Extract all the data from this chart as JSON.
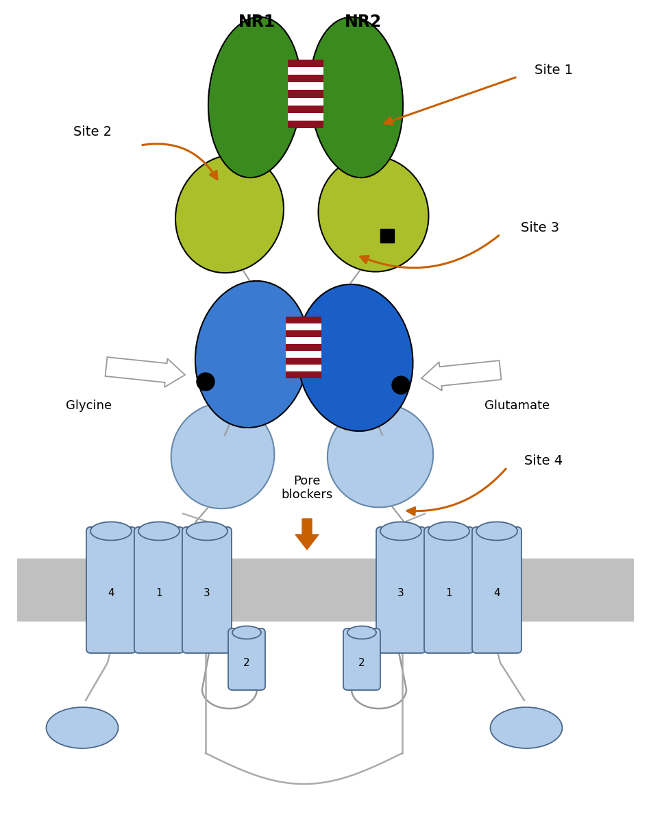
{
  "bg_color": "#ffffff",
  "dark_green": "#3a8a20",
  "light_green": "#aabf2a",
  "dark_blue": "#1a5fc8",
  "light_blue": "#b0cce8",
  "medium_blue": "#3a7ad0",
  "orange_arrow": "#c86000",
  "gray_membrane": "#c0c0c0",
  "dark_red_stripe": "#8b1020",
  "white_arrow": "#ffffff",
  "black": "#000000",
  "nr1_label": "NR1",
  "nr2_label": "NR2",
  "site1_label": "Site 1",
  "site2_label": "Site 2",
  "site3_label": "Site 3",
  "site4_label": "Site 4",
  "glycine_label": "Glycine",
  "glutamate_label": "Glutamate",
  "pore_label": "Pore\nblockers"
}
